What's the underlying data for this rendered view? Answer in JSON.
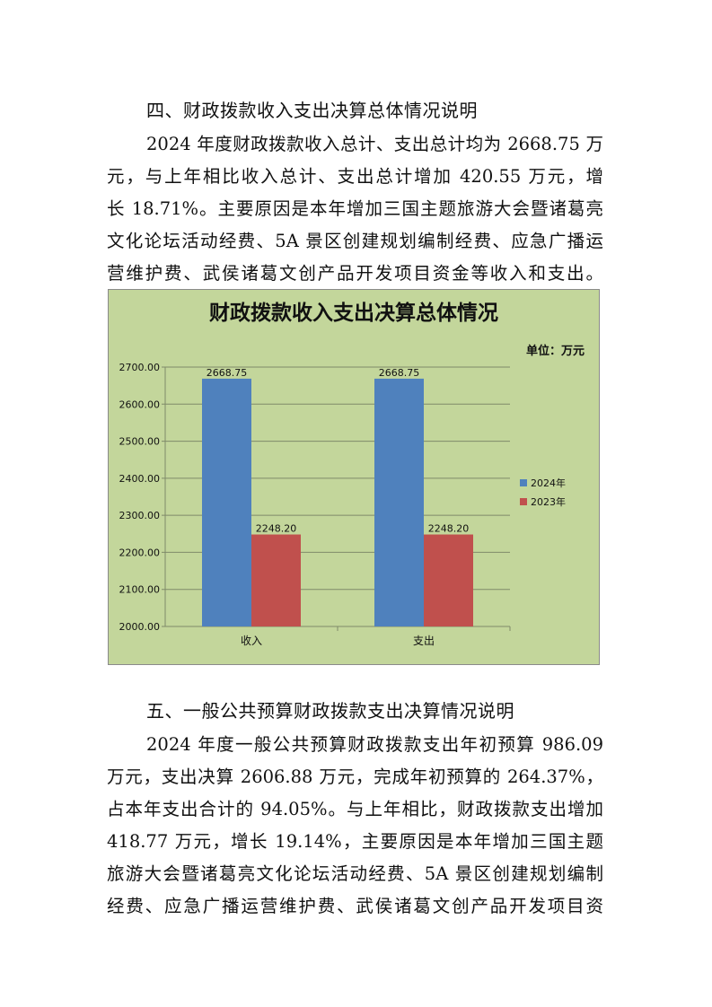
{
  "section4": {
    "heading": "四、财政拨款收入支出决算总体情况说明",
    "lines": [
      "2024 年度财政拨款收入总计、支出总计均为 2668.75 万",
      "元，与上年相比收入总计、支出总计增加 420.55 万元，增",
      "长 18.71%。主要原因是本年增加三国主题旅游大会暨诸葛亮",
      "文化论坛活动经费、5A 景区创建规划编制经费、应急广播运",
      "营维护费、武侯诸葛文创产品开发项目资金等收入和支出。"
    ]
  },
  "chart_data": {
    "type": "bar",
    "title": "财政拨款收入支出决算总体情况",
    "unit_label": "单位：万元",
    "categories": [
      "收入",
      "支出"
    ],
    "series": [
      {
        "name": "2024年",
        "color": "#4f81bd",
        "values": [
          2668.75,
          2668.75
        ],
        "labels": [
          "2668.75",
          "2668.75"
        ]
      },
      {
        "name": "2023年",
        "color": "#c0504d",
        "values": [
          2248.2,
          2248.2
        ],
        "labels": [
          "2248.20",
          "2248.20"
        ]
      }
    ],
    "ylim": [
      2000,
      2700
    ],
    "yticks": [
      "2000.00",
      "2100.00",
      "2200.00",
      "2300.00",
      "2400.00",
      "2500.00",
      "2600.00",
      "2700.00"
    ],
    "grid": true,
    "legend": "right",
    "background": "#c3d69b"
  },
  "section5": {
    "heading": "五、一般公共预算财政拨款支出决算情况说明",
    "lines": [
      "2024 年度一般公共预算财政拨款支出年初预算 986.09",
      "万元，支出决算 2606.88 万元，完成年初预算的 264.37%，",
      "占本年支出合计的 94.05%。与上年相比，财政拨款支出增加",
      "418.77 万元，增长 19.14%，主要原因是本年增加三国主题",
      "旅游大会暨诸葛亮文化论坛活动经费、5A 景区创建规划编制",
      "经费、应急广播运营维护费、武侯诸葛文创产品开发项目资"
    ]
  }
}
